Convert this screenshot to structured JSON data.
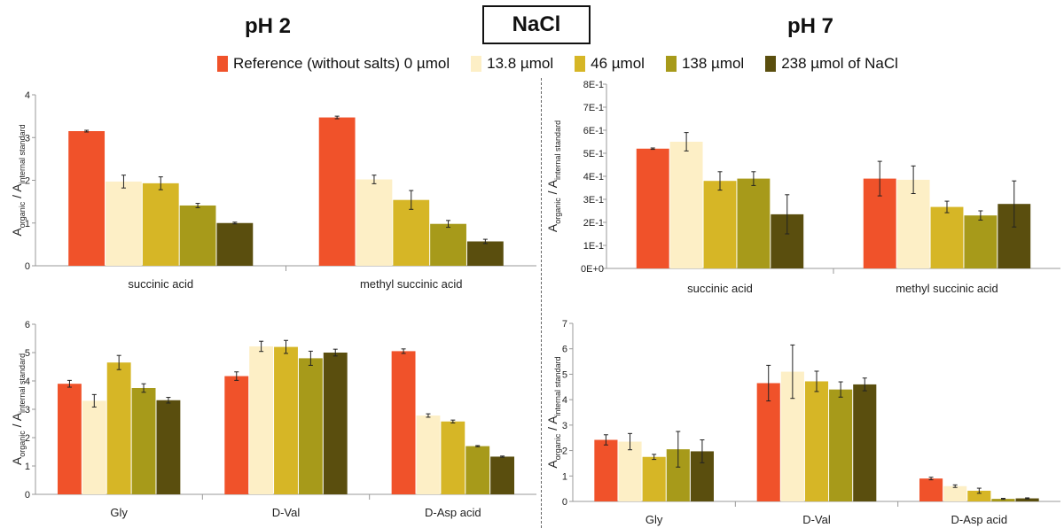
{
  "headers": {
    "left": "pH 2",
    "center": "NaCl",
    "right": "pH 7"
  },
  "legend": [
    {
      "label": "Reference (without salts) 0 µmol",
      "color": "#F0522A"
    },
    {
      "label": "13.8 µmol",
      "color": "#FDEFC6"
    },
    {
      "label": "46 µmol",
      "color": "#D6B626"
    },
    {
      "label": "138 µmol",
      "color": "#A79A1A"
    },
    {
      "label": "238 µmol of NaCl",
      "color": "#5A4E0E"
    }
  ],
  "axis_label": {
    "main": "A",
    "main_sub": "organic",
    "sep": " / A",
    "den_sub": "internal standard"
  },
  "chart_data": [
    {
      "type": "bar",
      "panel": "pH 2 carboxylic acids",
      "categories": [
        "succinic acid",
        "methyl succinic acid"
      ],
      "ylim": [
        0,
        4
      ],
      "yticks": [
        "0",
        "1",
        "2",
        "3",
        "4"
      ],
      "series": [
        {
          "name": "Reference (without salts) 0 µmol",
          "values": [
            3.15,
            3.47
          ],
          "errors": [
            0.02,
            0.03
          ]
        },
        {
          "name": "13.8 µmol",
          "values": [
            1.97,
            2.02
          ],
          "errors": [
            0.15,
            0.1
          ]
        },
        {
          "name": "46 µmol",
          "values": [
            1.93,
            1.54
          ],
          "errors": [
            0.15,
            0.22
          ]
        },
        {
          "name": "138 µmol",
          "values": [
            1.41,
            0.98
          ],
          "errors": [
            0.05,
            0.08
          ]
        },
        {
          "name": "238 µmol of NaCl",
          "values": [
            1.0,
            0.57
          ],
          "errors": [
            0.02,
            0.05
          ]
        }
      ]
    },
    {
      "type": "bar",
      "panel": "pH 2 amino acids",
      "categories": [
        "Gly",
        "D-Val",
        "D-Asp acid"
      ],
      "ylim": [
        0,
        6
      ],
      "yticks": [
        "0",
        "1",
        "2",
        "3",
        "4",
        "5",
        "6"
      ],
      "series": [
        {
          "name": "Reference (without salts) 0 µmol",
          "values": [
            3.9,
            4.17,
            5.05
          ],
          "errors": [
            0.12,
            0.15,
            0.08
          ]
        },
        {
          "name": "13.8 µmol",
          "values": [
            3.3,
            5.22,
            2.78
          ],
          "errors": [
            0.22,
            0.18,
            0.06
          ]
        },
        {
          "name": "46 µmol",
          "values": [
            4.65,
            5.2,
            2.57
          ],
          "errors": [
            0.25,
            0.23,
            0.05
          ]
        },
        {
          "name": "138 µmol",
          "values": [
            3.75,
            4.8,
            1.7
          ],
          "errors": [
            0.15,
            0.25,
            0.02
          ]
        },
        {
          "name": "238 µmol of NaCl",
          "values": [
            3.32,
            5.0,
            1.33
          ],
          "errors": [
            0.1,
            0.12,
            0.02
          ]
        }
      ]
    },
    {
      "type": "bar",
      "panel": "pH 7 carboxylic acids",
      "categories": [
        "succinic acid",
        "methyl succinic acid"
      ],
      "ylim": [
        0,
        0.8
      ],
      "yticks": [
        "0E+0",
        "1E-1",
        "2E-1",
        "3E-1",
        "4E-1",
        "5E-1",
        "6E-1",
        "7E-1",
        "8E-1"
      ],
      "series": [
        {
          "name": "Reference (without salts) 0 µmol",
          "values": [
            0.52,
            0.39
          ],
          "errors": [
            0.003,
            0.075
          ]
        },
        {
          "name": "13.8 µmol",
          "values": [
            0.55,
            0.385
          ],
          "errors": [
            0.04,
            0.06
          ]
        },
        {
          "name": "46 µmol",
          "values": [
            0.38,
            0.267
          ],
          "errors": [
            0.04,
            0.025
          ]
        },
        {
          "name": "138 µmol",
          "values": [
            0.39,
            0.23
          ],
          "errors": [
            0.03,
            0.02
          ]
        },
        {
          "name": "238 µmol of NaCl",
          "values": [
            0.235,
            0.28
          ],
          "errors": [
            0.085,
            0.1
          ]
        }
      ]
    },
    {
      "type": "bar",
      "panel": "pH 7 amino acids",
      "categories": [
        "Gly",
        "D-Val",
        "D-Asp acid"
      ],
      "ylim": [
        0,
        7
      ],
      "yticks": [
        "0",
        "1",
        "2",
        "3",
        "4",
        "5",
        "6",
        "7"
      ],
      "series": [
        {
          "name": "Reference (without salts) 0 µmol",
          "values": [
            2.42,
            4.65,
            0.9
          ],
          "errors": [
            0.2,
            0.7,
            0.05
          ]
        },
        {
          "name": "13.8 µmol",
          "values": [
            2.35,
            5.1,
            0.6
          ],
          "errors": [
            0.32,
            1.05,
            0.05
          ]
        },
        {
          "name": "46 µmol",
          "values": [
            1.75,
            4.72,
            0.42
          ],
          "errors": [
            0.1,
            0.4,
            0.1
          ]
        },
        {
          "name": "138 µmol",
          "values": [
            2.05,
            4.4,
            0.1
          ],
          "errors": [
            0.7,
            0.3,
            0.02
          ]
        },
        {
          "name": "238 µmol of NaCl",
          "values": [
            1.97,
            4.6,
            0.12
          ],
          "errors": [
            0.45,
            0.25,
            0.02
          ]
        }
      ]
    }
  ]
}
